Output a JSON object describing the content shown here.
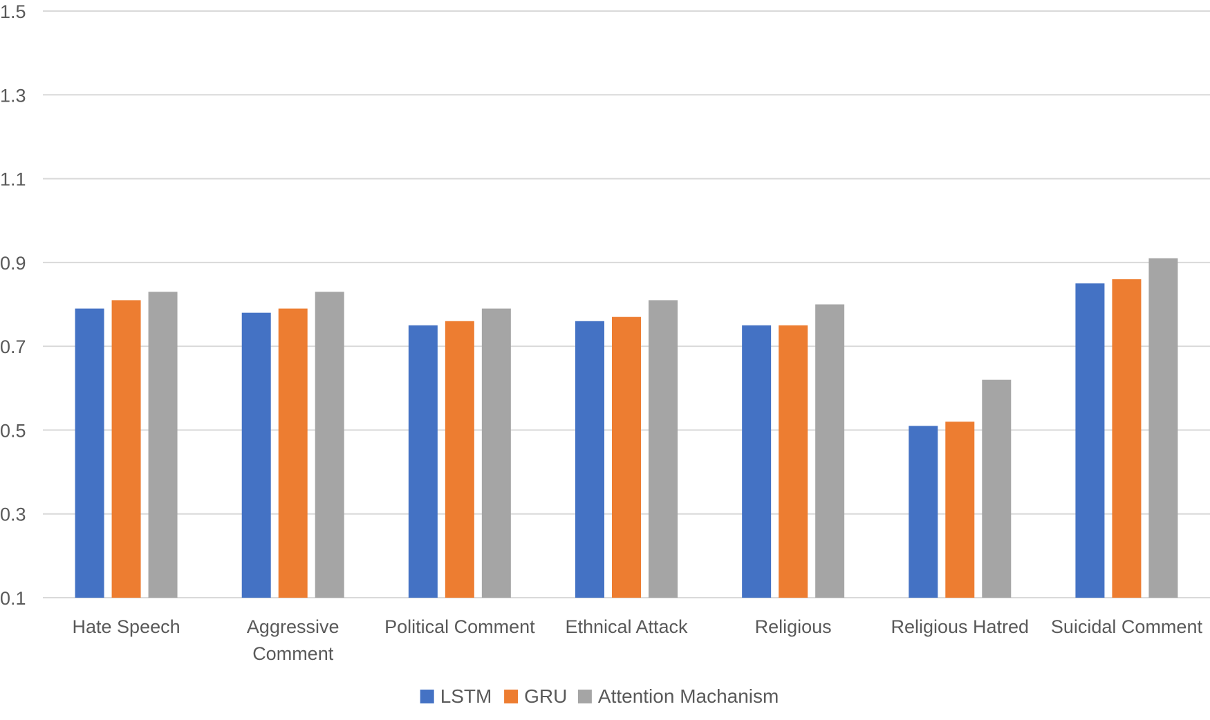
{
  "chart_data": {
    "type": "bar",
    "title": "",
    "xlabel": "",
    "ylabel": "",
    "categories": [
      [
        "Hate Speech"
      ],
      [
        "Aggressive",
        "Comment"
      ],
      [
        "Political Comment"
      ],
      [
        "Ethnical Attack"
      ],
      [
        "Religious"
      ],
      [
        "Religious Hatred"
      ],
      [
        "Suicidal Comment"
      ]
    ],
    "series": [
      {
        "name": "LSTM",
        "color": "#4472C4",
        "values": [
          0.79,
          0.78,
          0.75,
          0.76,
          0.75,
          0.51,
          0.85
        ]
      },
      {
        "name": "GRU",
        "color": "#ED7D31",
        "values": [
          0.81,
          0.79,
          0.76,
          0.77,
          0.75,
          0.52,
          0.86
        ]
      },
      {
        "name": "Attention Machanism",
        "color": "#A5A5A5",
        "values": [
          0.83,
          0.83,
          0.79,
          0.81,
          0.8,
          0.62,
          0.91
        ]
      }
    ],
    "ylim": [
      0.1,
      1.5
    ],
    "yticks": [
      "0.1",
      "0.3",
      "0.5",
      "0.7",
      "0.9",
      "1.1",
      "1.3",
      "1.5"
    ],
    "grid": true,
    "legend": "bottom-center"
  }
}
